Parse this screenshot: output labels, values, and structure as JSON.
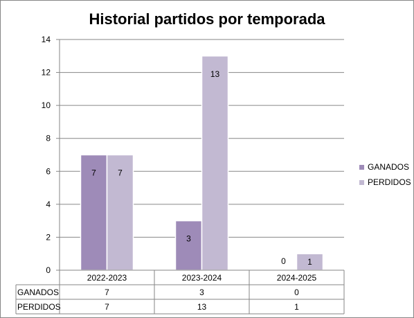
{
  "chart_data": {
    "type": "bar",
    "title": "Historial partidos por temporada",
    "categories": [
      "2022-2023",
      "2023-2024",
      "2024-2025"
    ],
    "series": [
      {
        "name": "GANADOS",
        "values": [
          7,
          3,
          0
        ],
        "color": "#9e8bb8"
      },
      {
        "name": "PERDIDOS",
        "values": [
          7,
          13,
          1
        ],
        "color": "#c2b9d2"
      }
    ],
    "ylim": [
      0,
      14
    ],
    "yticks": [
      0,
      2,
      4,
      6,
      8,
      10,
      12,
      14
    ],
    "grid": true,
    "legend_position": "right",
    "data_table": true
  }
}
